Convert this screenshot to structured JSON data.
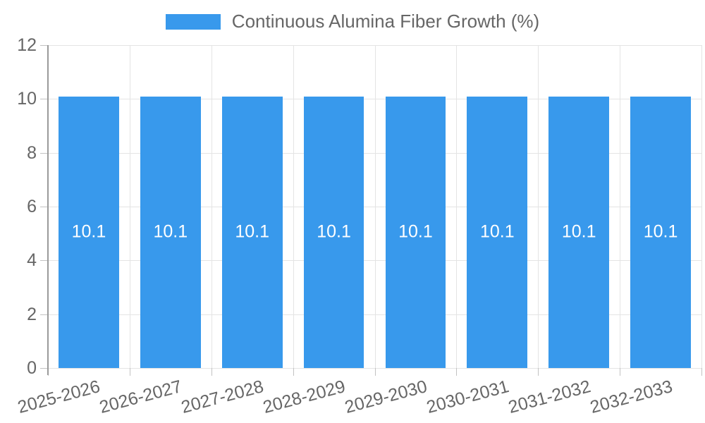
{
  "legend": {
    "label": "Continuous Alumina Fiber Growth (%)",
    "swatch_color": "#3899ec"
  },
  "colors": {
    "bar": "#3899ec",
    "axis_line": "#9a9a9a",
    "gridline": "#e4e4e4",
    "tick": "#c2c2c2",
    "tick_label": "#666666",
    "bar_value_label": "#ffffff",
    "background": "#ffffff"
  },
  "chart_data": {
    "type": "bar",
    "title": "Continuous Alumina Fiber Growth (%)",
    "categories": [
      "2025-2026",
      "2026-2027",
      "2027-2028",
      "2028-2029",
      "2029-2030",
      "2030-2031",
      "2031-2032",
      "2032-2033"
    ],
    "values": [
      10.1,
      10.1,
      10.1,
      10.1,
      10.1,
      10.1,
      10.1,
      10.1
    ],
    "bar_value_labels": [
      "10.1",
      "10.1",
      "10.1",
      "10.1",
      "10.1",
      "10.1",
      "10.1",
      "10.1"
    ],
    "xlabel": "",
    "ylabel": "",
    "ylim": [
      0,
      12
    ],
    "yticks": [
      0,
      2,
      4,
      6,
      8,
      10,
      12
    ],
    "grid": true,
    "legend_position": "top",
    "bar_color": "#3899ec",
    "x_label_rotation_deg": -15
  }
}
